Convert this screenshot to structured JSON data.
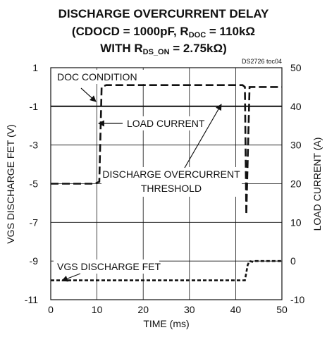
{
  "chart_data": {
    "type": "line",
    "title": {
      "line1": "DISCHARGE OVERCURRENT DELAY",
      "line2_pre": "(CDOCD = 1000pF, R",
      "line2_sub": "DOC",
      "line2_post": " = 110kΩ",
      "line3_pre": "WITH R",
      "line3_sub": "DS_ON",
      "line3_post": " = 2.75kΩ)"
    },
    "figure_id": "DS2726 toc04",
    "xlabel": "TIME (ms)",
    "ylabel_left": "VGS DISCHARGE FET (V)",
    "ylabel_right": "LOAD CURRENT (A)",
    "xlim": [
      0,
      50
    ],
    "ylim_left": [
      -11,
      1
    ],
    "ylim_right": [
      -10,
      50
    ],
    "x_ticks": [
      "0",
      "10",
      "20",
      "30",
      "40",
      "50"
    ],
    "y_ticks_left": [
      "1",
      "-1",
      "-3",
      "-5",
      "-7",
      "-9",
      "-11"
    ],
    "y_ticks_right": [
      "50",
      "40",
      "30",
      "20",
      "10",
      "0",
      "-10"
    ],
    "grid": true,
    "series": [
      {
        "name": "LOAD CURRENT",
        "axis": "right",
        "style": "long-dash",
        "x": [
          0,
          9.5,
          10.5,
          11.0,
          12.0,
          20,
          30,
          41.5,
          42.0,
          42.3,
          43.0,
          50
        ],
        "y": [
          20,
          20,
          20.5,
          45,
          45.5,
          45.5,
          45.5,
          45.5,
          45,
          12,
          45,
          45
        ]
      },
      {
        "name": "VGS DISCHARGE FET",
        "axis": "left",
        "style": "short-dash",
        "x": [
          0,
          10,
          20,
          30,
          42.0,
          42.3,
          42.6,
          43.0,
          43.8,
          44.3,
          50
        ],
        "y": [
          -10,
          -10,
          -10,
          -10,
          -10,
          -9.6,
          -9.2,
          -9.0,
          -9.05,
          -9.0,
          -9.0
        ]
      },
      {
        "name": "DISCHARGE OVERCURRENT THRESHOLD",
        "axis": "right",
        "style": "solid",
        "x": [
          0,
          50
        ],
        "y": [
          40,
          40
        ]
      }
    ],
    "annotations": {
      "doc_condition": "DOC CONDITION",
      "load_current": "LOAD CURRENT",
      "threshold_line1": "DISCHARGE OVERCURRENT",
      "threshold_line2": "THRESHOLD",
      "vgs_fet": "VGS DISCHARGE FET"
    }
  }
}
